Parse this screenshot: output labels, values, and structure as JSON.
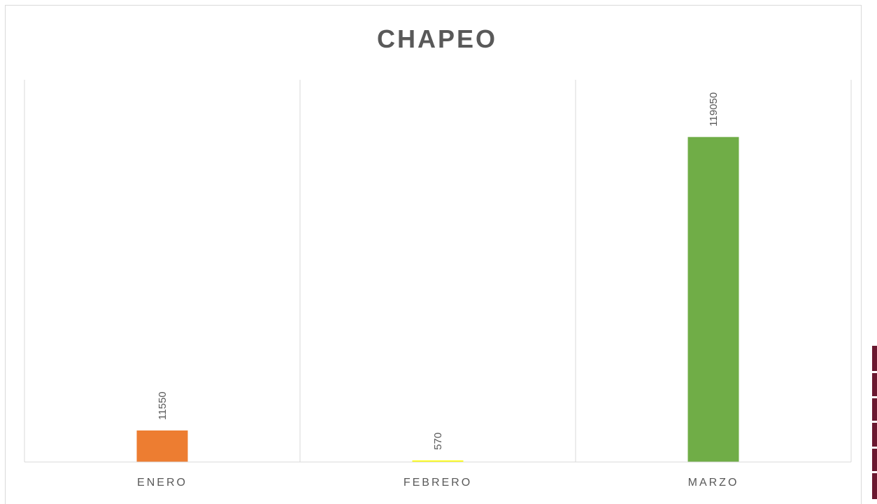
{
  "chart_data": {
    "type": "bar",
    "title": "CHAPEO",
    "categories": [
      "ENERO",
      "FEBRERO",
      "MARZO"
    ],
    "values": [
      11550,
      570,
      119050
    ],
    "colors": [
      "#ed7d31",
      "#ffff00",
      "#70ad47"
    ],
    "data_labels": [
      "11550",
      "570",
      "119050"
    ],
    "ylim": [
      0,
      140000
    ],
    "y_axis_visible": false,
    "grid": "vertical category separators",
    "legend": "none"
  }
}
